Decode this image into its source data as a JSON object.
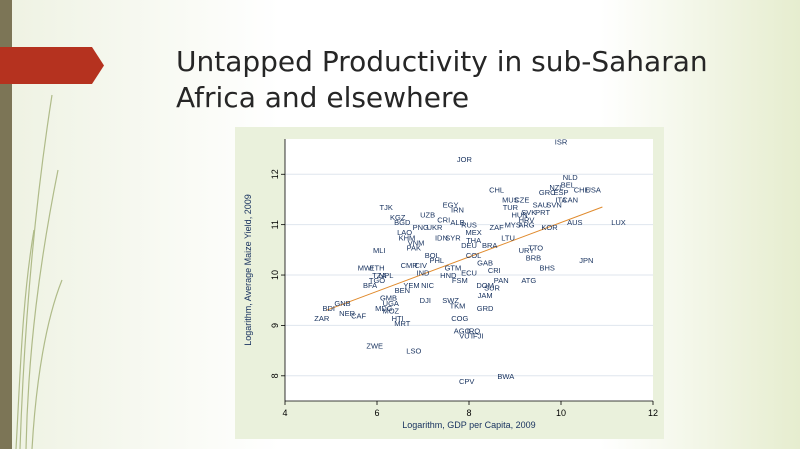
{
  "slide": {
    "title": "Untapped Productivity in sub-Saharan Africa and elsewhere",
    "accent_color": "#b5321f",
    "side_bar_color": "#7c7556"
  },
  "chart_data": {
    "type": "scatter",
    "xlabel": "Logarithm, GDP per Capita, 2009",
    "ylabel": "Logarithm, Average Maize Yield, 2009",
    "xlim": [
      4,
      12
    ],
    "ylim": [
      7.5,
      12.7
    ],
    "xticks": [
      4,
      6,
      8,
      10,
      12
    ],
    "yticks": [
      8,
      9,
      10,
      11,
      12
    ],
    "grid": "horizontal",
    "fit_line": {
      "x": [
        4.9,
        10.9
      ],
      "y": [
        9.3,
        11.35
      ],
      "color": "#e08a2c"
    },
    "points": [
      {
        "label": "ISR",
        "x": 10.0,
        "y": 12.65
      },
      {
        "label": "JOR",
        "x": 7.9,
        "y": 12.3
      },
      {
        "label": "NLD",
        "x": 10.2,
        "y": 11.95
      },
      {
        "label": "CHL",
        "x": 8.6,
        "y": 11.7
      },
      {
        "label": "NZL",
        "x": 9.9,
        "y": 11.75
      },
      {
        "label": "BEL",
        "x": 10.15,
        "y": 11.8
      },
      {
        "label": "CHE",
        "x": 10.45,
        "y": 11.7
      },
      {
        "label": "USA",
        "x": 10.7,
        "y": 11.7
      },
      {
        "label": "GRC",
        "x": 9.7,
        "y": 11.65
      },
      {
        "label": "ESP",
        "x": 10.0,
        "y": 11.65
      },
      {
        "label": "CAN",
        "x": 10.2,
        "y": 11.5
      },
      {
        "label": "ITA",
        "x": 10.0,
        "y": 11.5
      },
      {
        "label": "MUS",
        "x": 8.9,
        "y": 11.5
      },
      {
        "label": "CZE",
        "x": 9.15,
        "y": 11.5
      },
      {
        "label": "SAU",
        "x": 9.55,
        "y": 11.4
      },
      {
        "label": "SVN",
        "x": 9.85,
        "y": 11.4
      },
      {
        "label": "EGY",
        "x": 7.6,
        "y": 11.4
      },
      {
        "label": "IRN",
        "x": 7.75,
        "y": 11.3
      },
      {
        "label": "TUR",
        "x": 8.9,
        "y": 11.35
      },
      {
        "label": "PRT",
        "x": 9.6,
        "y": 11.25
      },
      {
        "label": "SVK",
        "x": 9.3,
        "y": 11.25
      },
      {
        "label": "TJK",
        "x": 6.2,
        "y": 11.35
      },
      {
        "label": "UZB",
        "x": 7.1,
        "y": 11.2
      },
      {
        "label": "KGZ",
        "x": 6.45,
        "y": 11.15
      },
      {
        "label": "HUN",
        "x": 9.1,
        "y": 11.2
      },
      {
        "label": "HRV",
        "x": 9.25,
        "y": 11.1
      },
      {
        "label": "ARG",
        "x": 9.25,
        "y": 11.0
      },
      {
        "label": "MYS",
        "x": 8.95,
        "y": 11.0
      },
      {
        "label": "KOR",
        "x": 9.75,
        "y": 10.95
      },
      {
        "label": "AUS",
        "x": 10.3,
        "y": 11.05
      },
      {
        "label": "LUX",
        "x": 11.25,
        "y": 11.05
      },
      {
        "label": "BGD",
        "x": 6.55,
        "y": 11.05
      },
      {
        "label": "CRI",
        "x": 7.45,
        "y": 11.1
      },
      {
        "label": "PNG",
        "x": 6.95,
        "y": 10.95
      },
      {
        "label": "LAO",
        "x": 6.6,
        "y": 10.85
      },
      {
        "label": "UKR",
        "x": 7.25,
        "y": 10.95
      },
      {
        "label": "ALB",
        "x": 7.75,
        "y": 11.05
      },
      {
        "label": "RUS",
        "x": 8.0,
        "y": 11.0
      },
      {
        "label": "ZAF",
        "x": 8.6,
        "y": 10.95
      },
      {
        "label": "MEX",
        "x": 8.1,
        "y": 10.85
      },
      {
        "label": "KHM",
        "x": 6.65,
        "y": 10.75
      },
      {
        "label": "VNM",
        "x": 6.85,
        "y": 10.65
      },
      {
        "label": "IDN",
        "x": 7.4,
        "y": 10.75
      },
      {
        "label": "SYR",
        "x": 7.65,
        "y": 10.75
      },
      {
        "label": "THA",
        "x": 8.1,
        "y": 10.7
      },
      {
        "label": "LTU",
        "x": 8.85,
        "y": 10.75
      },
      {
        "label": "PAK",
        "x": 6.8,
        "y": 10.55
      },
      {
        "label": "MLI",
        "x": 6.05,
        "y": 10.5
      },
      {
        "label": "DEU",
        "x": 8.0,
        "y": 10.6
      },
      {
        "label": "BRA",
        "x": 8.45,
        "y": 10.6
      },
      {
        "label": "TTO",
        "x": 9.45,
        "y": 10.55
      },
      {
        "label": "URY",
        "x": 9.25,
        "y": 10.5
      },
      {
        "label": "BOL",
        "x": 7.2,
        "y": 10.4
      },
      {
        "label": "PHL",
        "x": 7.3,
        "y": 10.3
      },
      {
        "label": "COL",
        "x": 8.1,
        "y": 10.4
      },
      {
        "label": "GAB",
        "x": 8.35,
        "y": 10.25
      },
      {
        "label": "BRB",
        "x": 9.4,
        "y": 10.35
      },
      {
        "label": "JPN",
        "x": 10.55,
        "y": 10.3
      },
      {
        "label": "BHS",
        "x": 9.7,
        "y": 10.15
      },
      {
        "label": "CMR",
        "x": 6.7,
        "y": 10.2
      },
      {
        "label": "CIV",
        "x": 6.95,
        "y": 10.2
      },
      {
        "label": "MWI",
        "x": 5.75,
        "y": 10.15
      },
      {
        "label": "ETH",
        "x": 6.0,
        "y": 10.15
      },
      {
        "label": "CRI",
        "x": 8.55,
        "y": 10.1
      },
      {
        "label": "GTM",
        "x": 7.65,
        "y": 10.15
      },
      {
        "label": "TZA",
        "x": 6.05,
        "y": 10.0
      },
      {
        "label": "NPL",
        "x": 6.2,
        "y": 10.0
      },
      {
        "label": "IND",
        "x": 7.0,
        "y": 10.05
      },
      {
        "label": "TGO",
        "x": 6.0,
        "y": 9.9
      },
      {
        "label": "HND",
        "x": 7.55,
        "y": 10.0
      },
      {
        "label": "ECU",
        "x": 8.0,
        "y": 10.05
      },
      {
        "label": "FSM",
        "x": 7.8,
        "y": 9.9
      },
      {
        "label": "PAN",
        "x": 8.7,
        "y": 9.9
      },
      {
        "label": "ATG",
        "x": 9.3,
        "y": 9.9
      },
      {
        "label": "NIC",
        "x": 7.1,
        "y": 9.8
      },
      {
        "label": "BFA",
        "x": 5.85,
        "y": 9.8
      },
      {
        "label": "YEM",
        "x": 6.75,
        "y": 9.8
      },
      {
        "label": "BEN",
        "x": 6.55,
        "y": 9.7
      },
      {
        "label": "DOM",
        "x": 8.35,
        "y": 9.8
      },
      {
        "label": "SUR",
        "x": 8.5,
        "y": 9.75
      },
      {
        "label": "JAM",
        "x": 8.35,
        "y": 9.6
      },
      {
        "label": "SWZ",
        "x": 7.6,
        "y": 9.5
      },
      {
        "label": "DJI",
        "x": 7.05,
        "y": 9.5
      },
      {
        "label": "TKM",
        "x": 7.75,
        "y": 9.4
      },
      {
        "label": "GMB",
        "x": 6.25,
        "y": 9.55
      },
      {
        "label": "UGA",
        "x": 6.3,
        "y": 9.45
      },
      {
        "label": "GNB",
        "x": 5.25,
        "y": 9.45
      },
      {
        "label": "BDI",
        "x": 4.95,
        "y": 9.35
      },
      {
        "label": "MDG",
        "x": 6.15,
        "y": 9.35
      },
      {
        "label": "NER",
        "x": 5.35,
        "y": 9.25
      },
      {
        "label": "CAF",
        "x": 5.6,
        "y": 9.2
      },
      {
        "label": "MOZ",
        "x": 6.3,
        "y": 9.3
      },
      {
        "label": "GRD",
        "x": 8.35,
        "y": 9.35
      },
      {
        "label": "ZAR",
        "x": 4.8,
        "y": 9.15
      },
      {
        "label": "HTI",
        "x": 6.45,
        "y": 9.15
      },
      {
        "label": "MRT",
        "x": 6.55,
        "y": 9.05
      },
      {
        "label": "COG",
        "x": 7.8,
        "y": 9.15
      },
      {
        "label": "AGO",
        "x": 7.85,
        "y": 8.9
      },
      {
        "label": "IRQ",
        "x": 8.1,
        "y": 8.9
      },
      {
        "label": "VUT",
        "x": 7.95,
        "y": 8.8
      },
      {
        "label": "FJI",
        "x": 8.2,
        "y": 8.8
      },
      {
        "label": "ZWE",
        "x": 5.95,
        "y": 8.6
      },
      {
        "label": "LSO",
        "x": 6.8,
        "y": 8.5
      },
      {
        "label": "BWA",
        "x": 8.8,
        "y": 8.0
      },
      {
        "label": "CPV",
        "x": 7.95,
        "y": 7.9
      }
    ]
  }
}
